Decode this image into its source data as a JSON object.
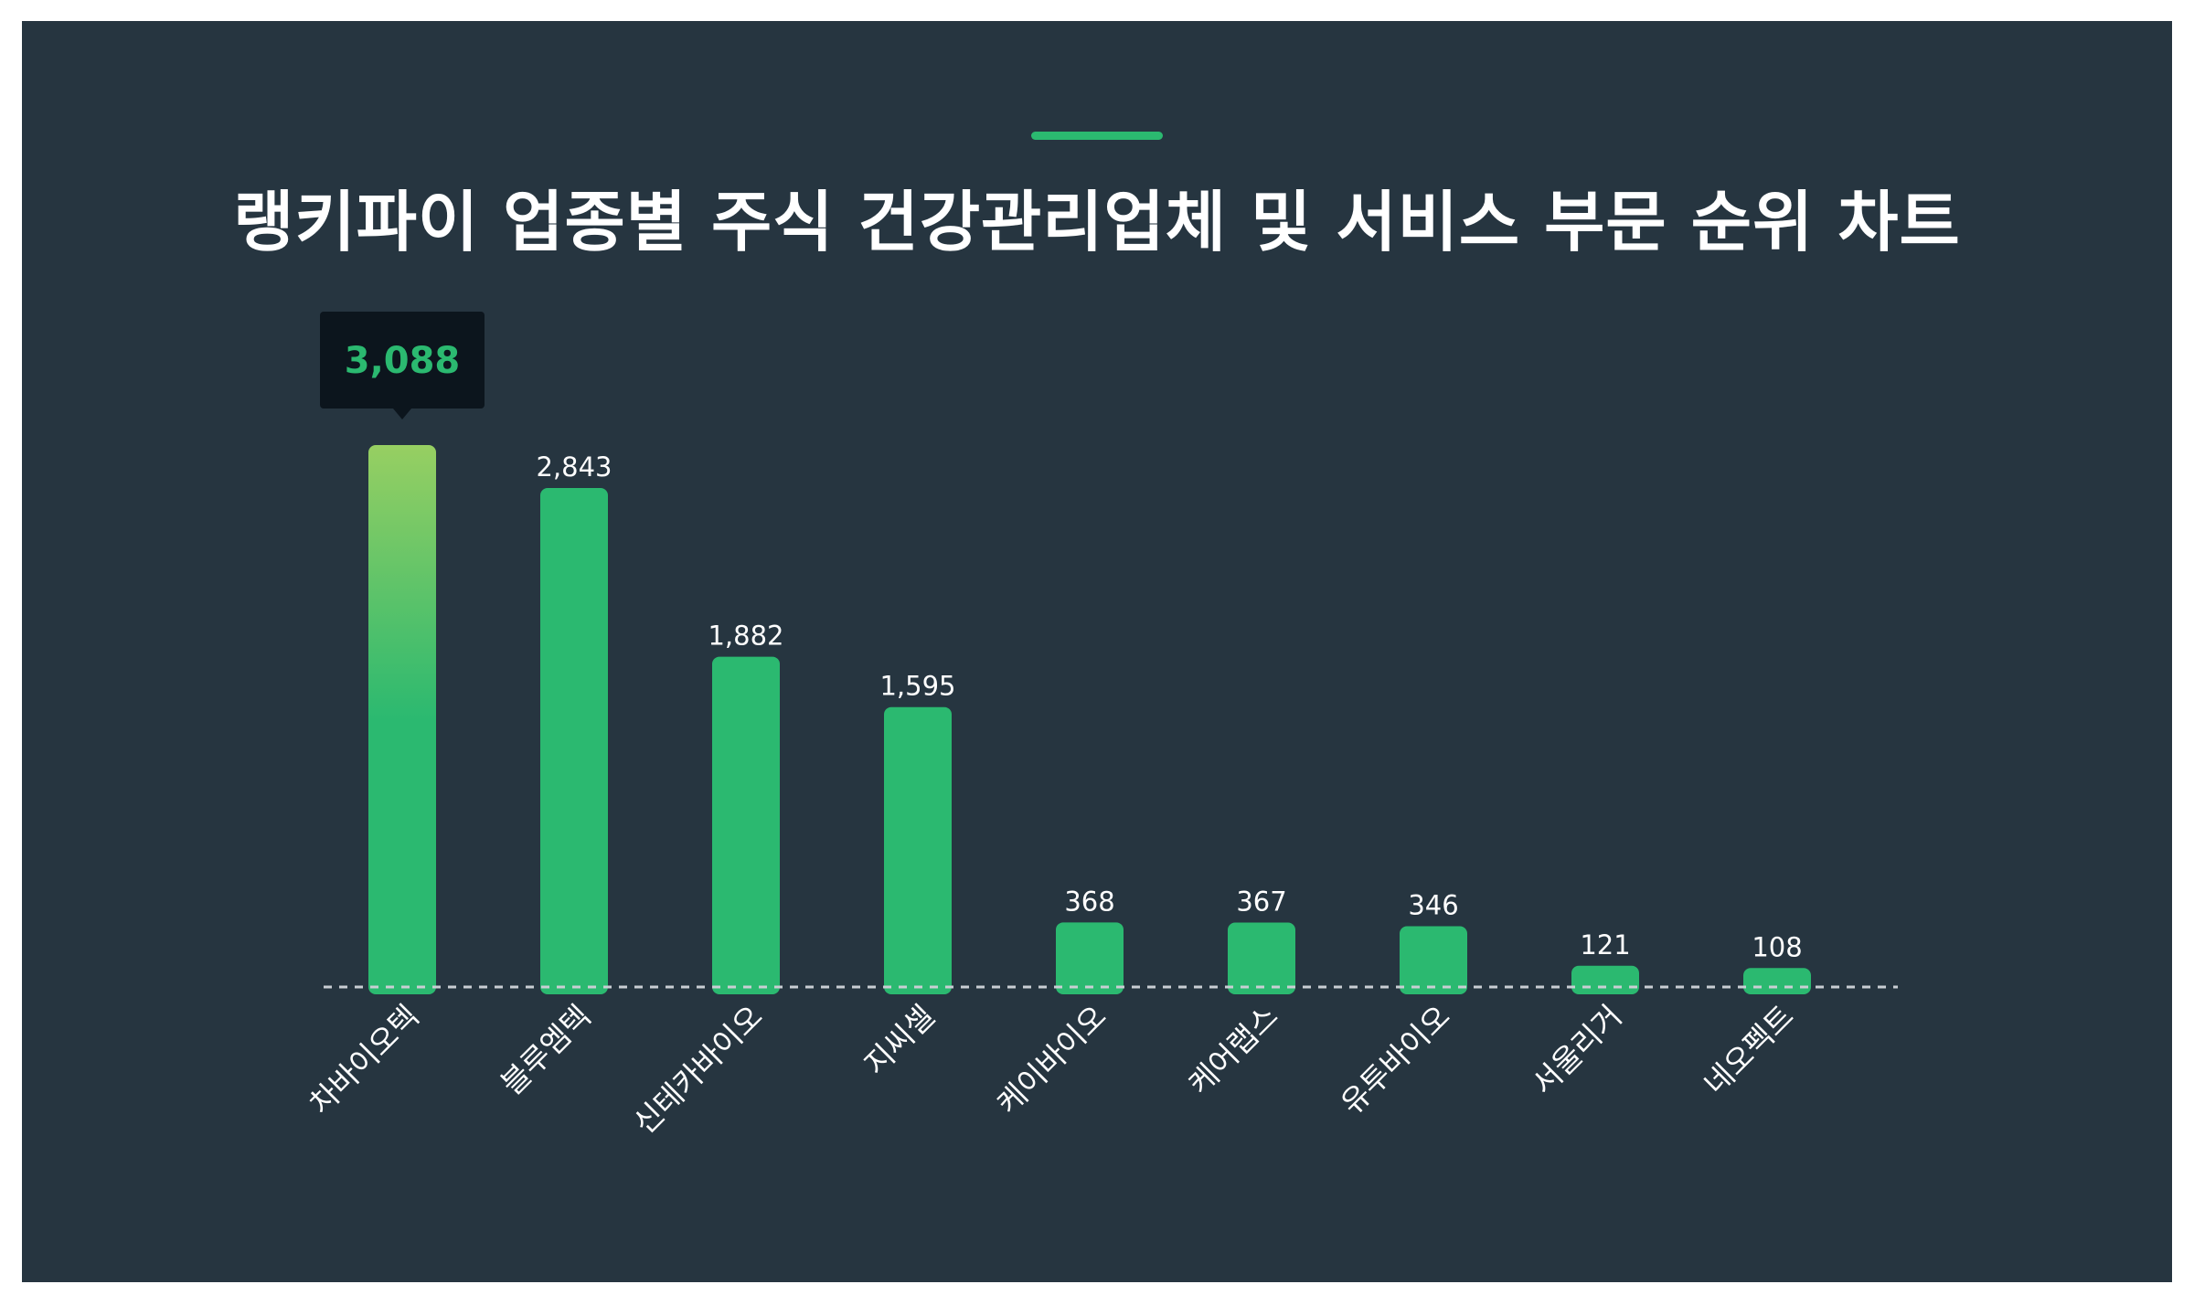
{
  "title": "랭키파이 업종별 주식 건강관리업체 및 서비스 부문 순위 차트",
  "colors": {
    "background": "#263540",
    "bar": "#2bb970",
    "highlight_top": "#97cf62",
    "tooltip_bg": "#0c151d",
    "tooltip_text": "#2bb970",
    "baseline": "#c9ced3"
  },
  "chart_data": {
    "type": "bar",
    "title": "랭키파이 업종별 주식 건강관리업체 및 서비스 부문 순위 차트",
    "categories": [
      "차바이오텍",
      "블루엠텍",
      "신테카바이오",
      "지씨셀",
      "케이바이오",
      "케어랩스",
      "유투바이오",
      "서울리거",
      "네오펙트"
    ],
    "values": [
      3088,
      2843,
      1882,
      1595,
      368,
      367,
      346,
      121,
      108
    ],
    "value_labels": [
      "3,088",
      "2,843",
      "1,882",
      "1,595",
      "368",
      "367",
      "346",
      "121",
      "108"
    ],
    "highlight_index": 0,
    "xlabel": "",
    "ylabel": "",
    "ylim": [
      0,
      3088
    ],
    "grid": false,
    "baseline_style": "dashed",
    "legend": "none"
  }
}
